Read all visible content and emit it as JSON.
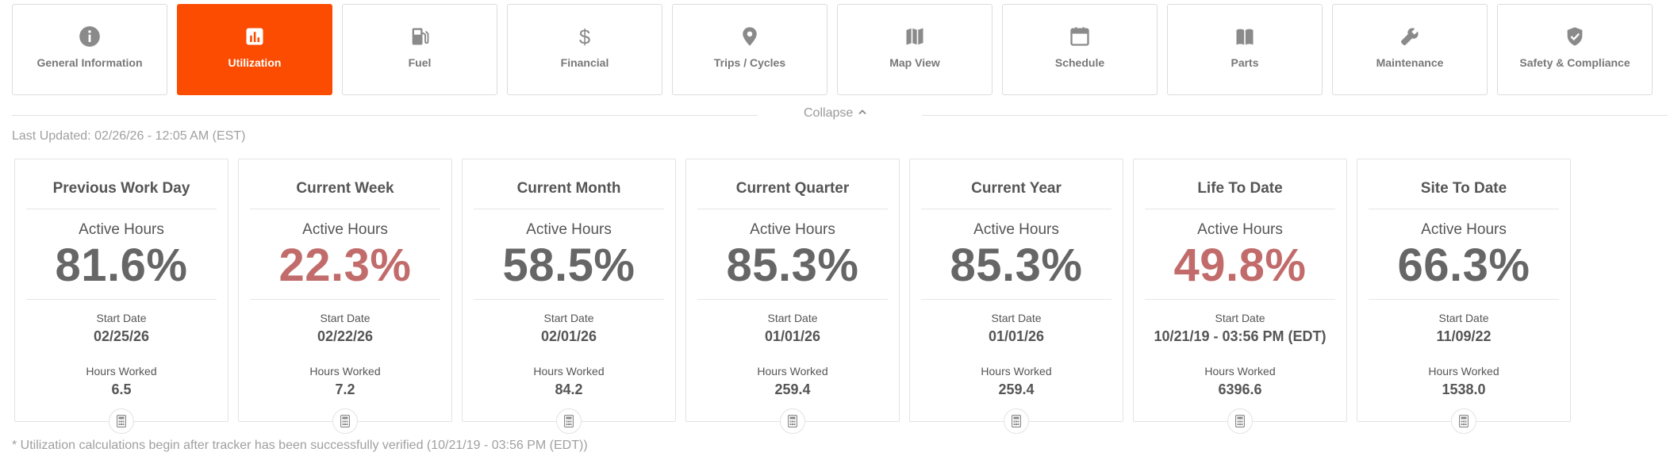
{
  "tabs": [
    {
      "label": "General Information",
      "icon": "info-icon",
      "active": false
    },
    {
      "label": "Utilization",
      "icon": "bar-chart-icon",
      "active": true
    },
    {
      "label": "Fuel",
      "icon": "fuel-pump-icon",
      "active": false
    },
    {
      "label": "Financial",
      "icon": "dollar-icon",
      "active": false
    },
    {
      "label": "Trips / Cycles",
      "icon": "map-pin-icon",
      "active": false
    },
    {
      "label": "Map View",
      "icon": "map-icon",
      "active": false
    },
    {
      "label": "Schedule",
      "icon": "calendar-icon",
      "active": false
    },
    {
      "label": "Parts",
      "icon": "book-icon",
      "active": false
    },
    {
      "label": "Maintenance",
      "icon": "wrench-icon",
      "active": false
    },
    {
      "label": "Safety & Compliance",
      "icon": "shield-check-icon",
      "active": false
    }
  ],
  "colors": {
    "accent": "#fc4c02",
    "low_value": "#c26b6b",
    "normal_value": "#666666"
  },
  "collapse_label": "Collapse",
  "last_updated": "Last Updated: 02/26/26 - 12:05 AM (EST)",
  "cards": [
    {
      "title": "Previous Work Day",
      "metric_label": "Active Hours",
      "value": "81.6%",
      "low": false,
      "start_date_label": "Start Date",
      "start_date": "02/25/26",
      "hours_worked_label": "Hours Worked",
      "hours_worked": "6.5"
    },
    {
      "title": "Current Week",
      "metric_label": "Active Hours",
      "value": "22.3%",
      "low": true,
      "start_date_label": "Start Date",
      "start_date": "02/22/26",
      "hours_worked_label": "Hours Worked",
      "hours_worked": "7.2"
    },
    {
      "title": "Current Month",
      "metric_label": "Active Hours",
      "value": "58.5%",
      "low": false,
      "start_date_label": "Start Date",
      "start_date": "02/01/26",
      "hours_worked_label": "Hours Worked",
      "hours_worked": "84.2"
    },
    {
      "title": "Current Quarter",
      "metric_label": "Active Hours",
      "value": "85.3%",
      "low": false,
      "start_date_label": "Start Date",
      "start_date": "01/01/26",
      "hours_worked_label": "Hours Worked",
      "hours_worked": "259.4"
    },
    {
      "title": "Current Year",
      "metric_label": "Active Hours",
      "value": "85.3%",
      "low": false,
      "start_date_label": "Start Date",
      "start_date": "01/01/26",
      "hours_worked_label": "Hours Worked",
      "hours_worked": "259.4"
    },
    {
      "title": "Life To Date",
      "metric_label": "Active Hours",
      "value": "49.8%",
      "low": true,
      "start_date_label": "Start Date",
      "start_date": "10/21/19 - 03:56 PM (EDT)",
      "hours_worked_label": "Hours Worked",
      "hours_worked": "6396.6"
    },
    {
      "title": "Site To Date",
      "metric_label": "Active Hours",
      "value": "66.3%",
      "low": false,
      "start_date_label": "Start Date",
      "start_date": "11/09/22",
      "hours_worked_label": "Hours Worked",
      "hours_worked": "1538.0"
    }
  ],
  "footnote": "* Utilization calculations begin after tracker has been successfully verified (10/21/19 - 03:56 PM (EDT))"
}
